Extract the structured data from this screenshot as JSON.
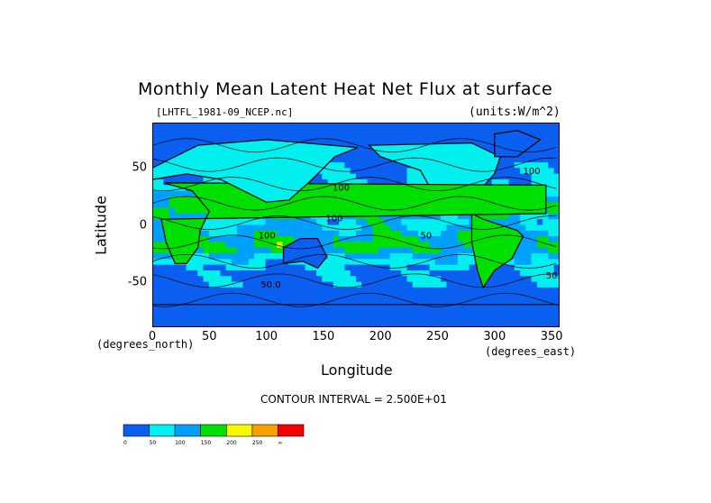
{
  "chart_data": {
    "type": "heatmap",
    "title": "Monthly Mean Latent Heat Net Flux at surface",
    "file_label": "[LHTFL_1981-09_NCEP.nc]",
    "units_label": "(units:W/m^2)",
    "xlabel": "Longitude",
    "ylabel": "Latitude",
    "x_unit_label": "(degrees_east)",
    "y_unit_label": "(degrees_north)",
    "xlim": [
      0,
      357
    ],
    "ylim": [
      -90,
      90
    ],
    "x_ticks": [
      0,
      50,
      100,
      150,
      200,
      250,
      300,
      350
    ],
    "y_ticks": [
      50,
      0,
      -50
    ],
    "contour_interval_label": "CONTOUR INTERVAL = 2.500E+01",
    "contour_line_labels": [
      {
        "text": "100",
        "lon": 158,
        "lat": 30
      },
      {
        "text": "100",
        "lon": 152,
        "lat": 3
      },
      {
        "text": "50",
        "lon": 235,
        "lat": -12
      },
      {
        "text": "100",
        "lon": 93,
        "lat": -12
      },
      {
        "text": "50.0",
        "lon": 95,
        "lat": -55
      },
      {
        "text": "50.0",
        "lon": 345,
        "lat": -47
      },
      {
        "text": "100",
        "lon": 325,
        "lat": 45
      }
    ],
    "color_levels": {
      "boundaries": [
        0,
        50,
        100,
        150,
        200,
        250
      ],
      "tick_labels": [
        "0",
        "50",
        "100",
        "150",
        "200",
        "250",
        "∞"
      ],
      "colors": [
        "#0b5ff0",
        "#00f0f0",
        "#00a0ff",
        "#00e000",
        "#f8f800",
        "#f8a000",
        "#f80000"
      ]
    },
    "land_mask_description_regions": [
      {
        "name": "North America",
        "value_class": 1
      },
      {
        "name": "South America",
        "value_class": 3
      },
      {
        "name": "Africa",
        "value_class": 3
      },
      {
        "name": "Eurasia",
        "value_class": 1
      },
      {
        "name": "Australia",
        "value_class": 0
      },
      {
        "name": "Antarctica",
        "value_class": 0
      },
      {
        "name": "Greenland",
        "value_class": 0
      }
    ]
  }
}
